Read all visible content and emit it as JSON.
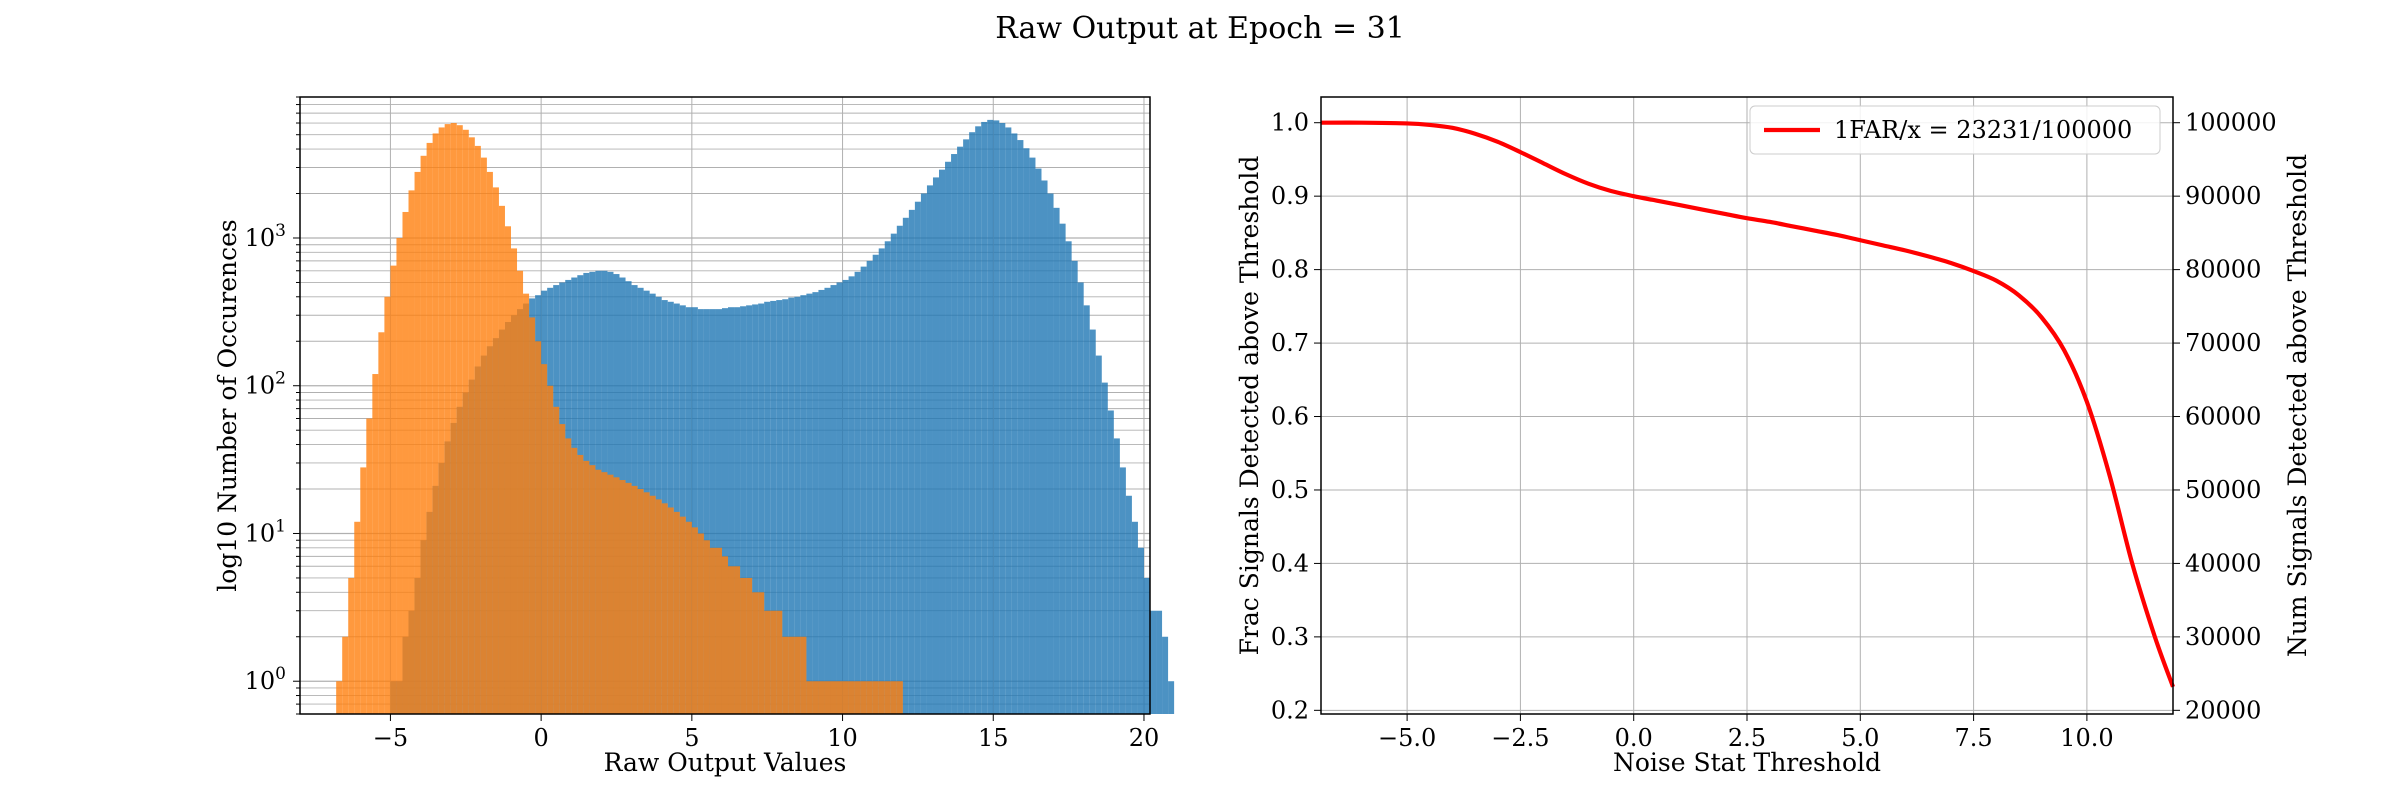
{
  "figure": {
    "suptitle": "Raw Output at Epoch = 31"
  },
  "chart_data": [
    {
      "type": "bar",
      "subtype": "histogram",
      "yscale": "log",
      "xlabel": "Raw Output Values",
      "ylabel": "log10 Number of Occurences",
      "xlim": [
        -8.0,
        20.2
      ],
      "ylim": [
        0.6,
        9000
      ],
      "xticks": [
        -5,
        0,
        5,
        10,
        15,
        20
      ],
      "xtick_labels": [
        "−5",
        "0",
        "5",
        "10",
        "15",
        "20"
      ],
      "yticks": [
        {
          "base": "10",
          "exp": "0",
          "value": 1
        },
        {
          "base": "10",
          "exp": "1",
          "value": 10
        },
        {
          "base": "10",
          "exp": "2",
          "value": 100
        },
        {
          "base": "10",
          "exp": "3",
          "value": 1000
        }
      ],
      "grid": true,
      "series": [
        {
          "color": "#1f77b4",
          "alpha": 0.8,
          "bin_start": -5.0,
          "bin_width": 0.2,
          "counts": [
            1,
            1,
            2,
            3,
            5,
            9,
            14,
            21,
            30,
            42,
            56,
            72,
            90,
            110,
            135,
            160,
            185,
            210,
            240,
            270,
            300,
            330,
            360,
            390,
            410,
            440,
            460,
            480,
            500,
            520,
            540,
            560,
            580,
            590,
            600,
            600,
            590,
            570,
            540,
            510,
            480,
            460,
            440,
            420,
            400,
            380,
            370,
            360,
            350,
            340,
            340,
            330,
            330,
            330,
            330,
            335,
            340,
            340,
            345,
            350,
            355,
            360,
            370,
            375,
            380,
            385,
            395,
            400,
            410,
            420,
            430,
            445,
            460,
            480,
            500,
            520,
            550,
            590,
            640,
            700,
            770,
            850,
            950,
            1070,
            1210,
            1370,
            1550,
            1760,
            2000,
            2270,
            2570,
            2900,
            3280,
            3700,
            4150,
            4650,
            5200,
            5700,
            6100,
            6300,
            6250,
            6000,
            5600,
            5100,
            4600,
            4050,
            3500,
            2950,
            2450,
            2000,
            1600,
            1250,
            950,
            700,
            500,
            350,
            240,
            160,
            105,
            68,
            44,
            28,
            18,
            12,
            8,
            5,
            3,
            3,
            2,
            1
          ]
        },
        {
          "color": "#ff7f0e",
          "alpha": 0.8,
          "bin_start": -6.8,
          "bin_width": 0.2,
          "counts": [
            1,
            2,
            5,
            12,
            28,
            60,
            120,
            230,
            400,
            650,
            1000,
            1500,
            2100,
            2800,
            3600,
            4400,
            5100,
            5600,
            5900,
            6000,
            5800,
            5400,
            4800,
            4200,
            3500,
            2800,
            2200,
            1650,
            1200,
            850,
            600,
            420,
            290,
            200,
            140,
            100,
            72,
            55,
            44,
            38,
            34,
            31,
            29,
            27,
            26,
            25,
            24,
            23,
            22,
            21,
            20,
            19,
            18,
            17,
            16,
            15,
            14,
            13,
            12,
            11,
            10,
            9,
            8,
            8,
            7,
            6,
            6,
            5,
            5,
            4,
            4,
            3,
            3,
            3,
            2,
            2,
            2,
            2,
            1,
            1,
            1,
            1,
            1,
            1,
            1,
            1,
            1,
            1,
            1,
            1,
            1,
            1,
            1,
            1
          ]
        }
      ]
    },
    {
      "type": "line",
      "xlabel": "Noise Stat Threshold",
      "ylabel": "Frac Signals Detected above Threshold",
      "ylabel_right": "Num Signals Detected above Threshold",
      "xlim": [
        -6.9,
        11.9
      ],
      "ylim": [
        0.195,
        1.035
      ],
      "ylim_right": [
        19500,
        103500
      ],
      "xticks": [
        -5.0,
        -2.5,
        0.0,
        2.5,
        5.0,
        7.5,
        10.0
      ],
      "xtick_labels": [
        "−5.0",
        "−2.5",
        "0.0",
        "2.5",
        "5.0",
        "7.5",
        "10.0"
      ],
      "yticks": [
        0.2,
        0.3,
        0.4,
        0.5,
        0.6,
        0.7,
        0.8,
        0.9,
        1.0
      ],
      "ytick_labels": [
        "0.2",
        "0.3",
        "0.4",
        "0.5",
        "0.6",
        "0.7",
        "0.8",
        "0.9",
        "1.0"
      ],
      "yticks_right": [
        20000,
        30000,
        40000,
        50000,
        60000,
        70000,
        80000,
        90000,
        100000
      ],
      "ytick_labels_right": [
        "20000",
        "30000",
        "40000",
        "50000",
        "60000",
        "70000",
        "80000",
        "90000",
        "100000"
      ],
      "grid": true,
      "legend_position": "top-right",
      "series": [
        {
          "name": "1FAR/x = 23231/100000",
          "color": "#ff0000",
          "x": [
            -6.9,
            -6.0,
            -5.0,
            -4.5,
            -4.0,
            -3.5,
            -3.0,
            -2.5,
            -2.0,
            -1.5,
            -1.0,
            -0.5,
            0.0,
            0.5,
            1.0,
            1.5,
            2.0,
            2.5,
            3.0,
            3.5,
            4.0,
            4.5,
            5.0,
            5.5,
            6.0,
            6.5,
            7.0,
            7.5,
            8.0,
            8.5,
            9.0,
            9.5,
            10.0,
            10.5,
            11.0,
            11.5,
            11.9
          ],
          "y": [
            1.0,
            1.0,
            0.999,
            0.997,
            0.993,
            0.985,
            0.974,
            0.96,
            0.945,
            0.93,
            0.917,
            0.907,
            0.9,
            0.894,
            0.888,
            0.882,
            0.876,
            0.87,
            0.865,
            0.859,
            0.853,
            0.847,
            0.84,
            0.833,
            0.826,
            0.818,
            0.809,
            0.798,
            0.785,
            0.765,
            0.735,
            0.69,
            0.62,
            0.52,
            0.4,
            0.3,
            0.232
          ]
        }
      ]
    }
  ]
}
